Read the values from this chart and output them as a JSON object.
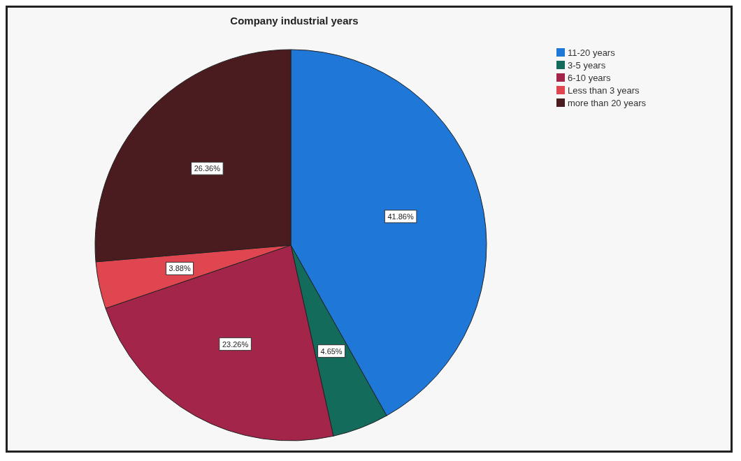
{
  "chart_data": {
    "type": "pie",
    "title": "Company industrial years",
    "categories": [
      "11-20 years",
      "3-5 years",
      "6-10 years",
      "Less than 3 years",
      "more than 20 years"
    ],
    "values": [
      41.86,
      4.65,
      23.26,
      3.88,
      26.36
    ],
    "colors": [
      "#1f78d8",
      "#136b5c",
      "#a3264a",
      "#e0464f",
      "#4a1c1f"
    ],
    "value_labels": [
      "41.86%",
      "4.65%",
      "23.26%",
      "3.88%",
      "26.36%"
    ],
    "legend": "top right"
  }
}
